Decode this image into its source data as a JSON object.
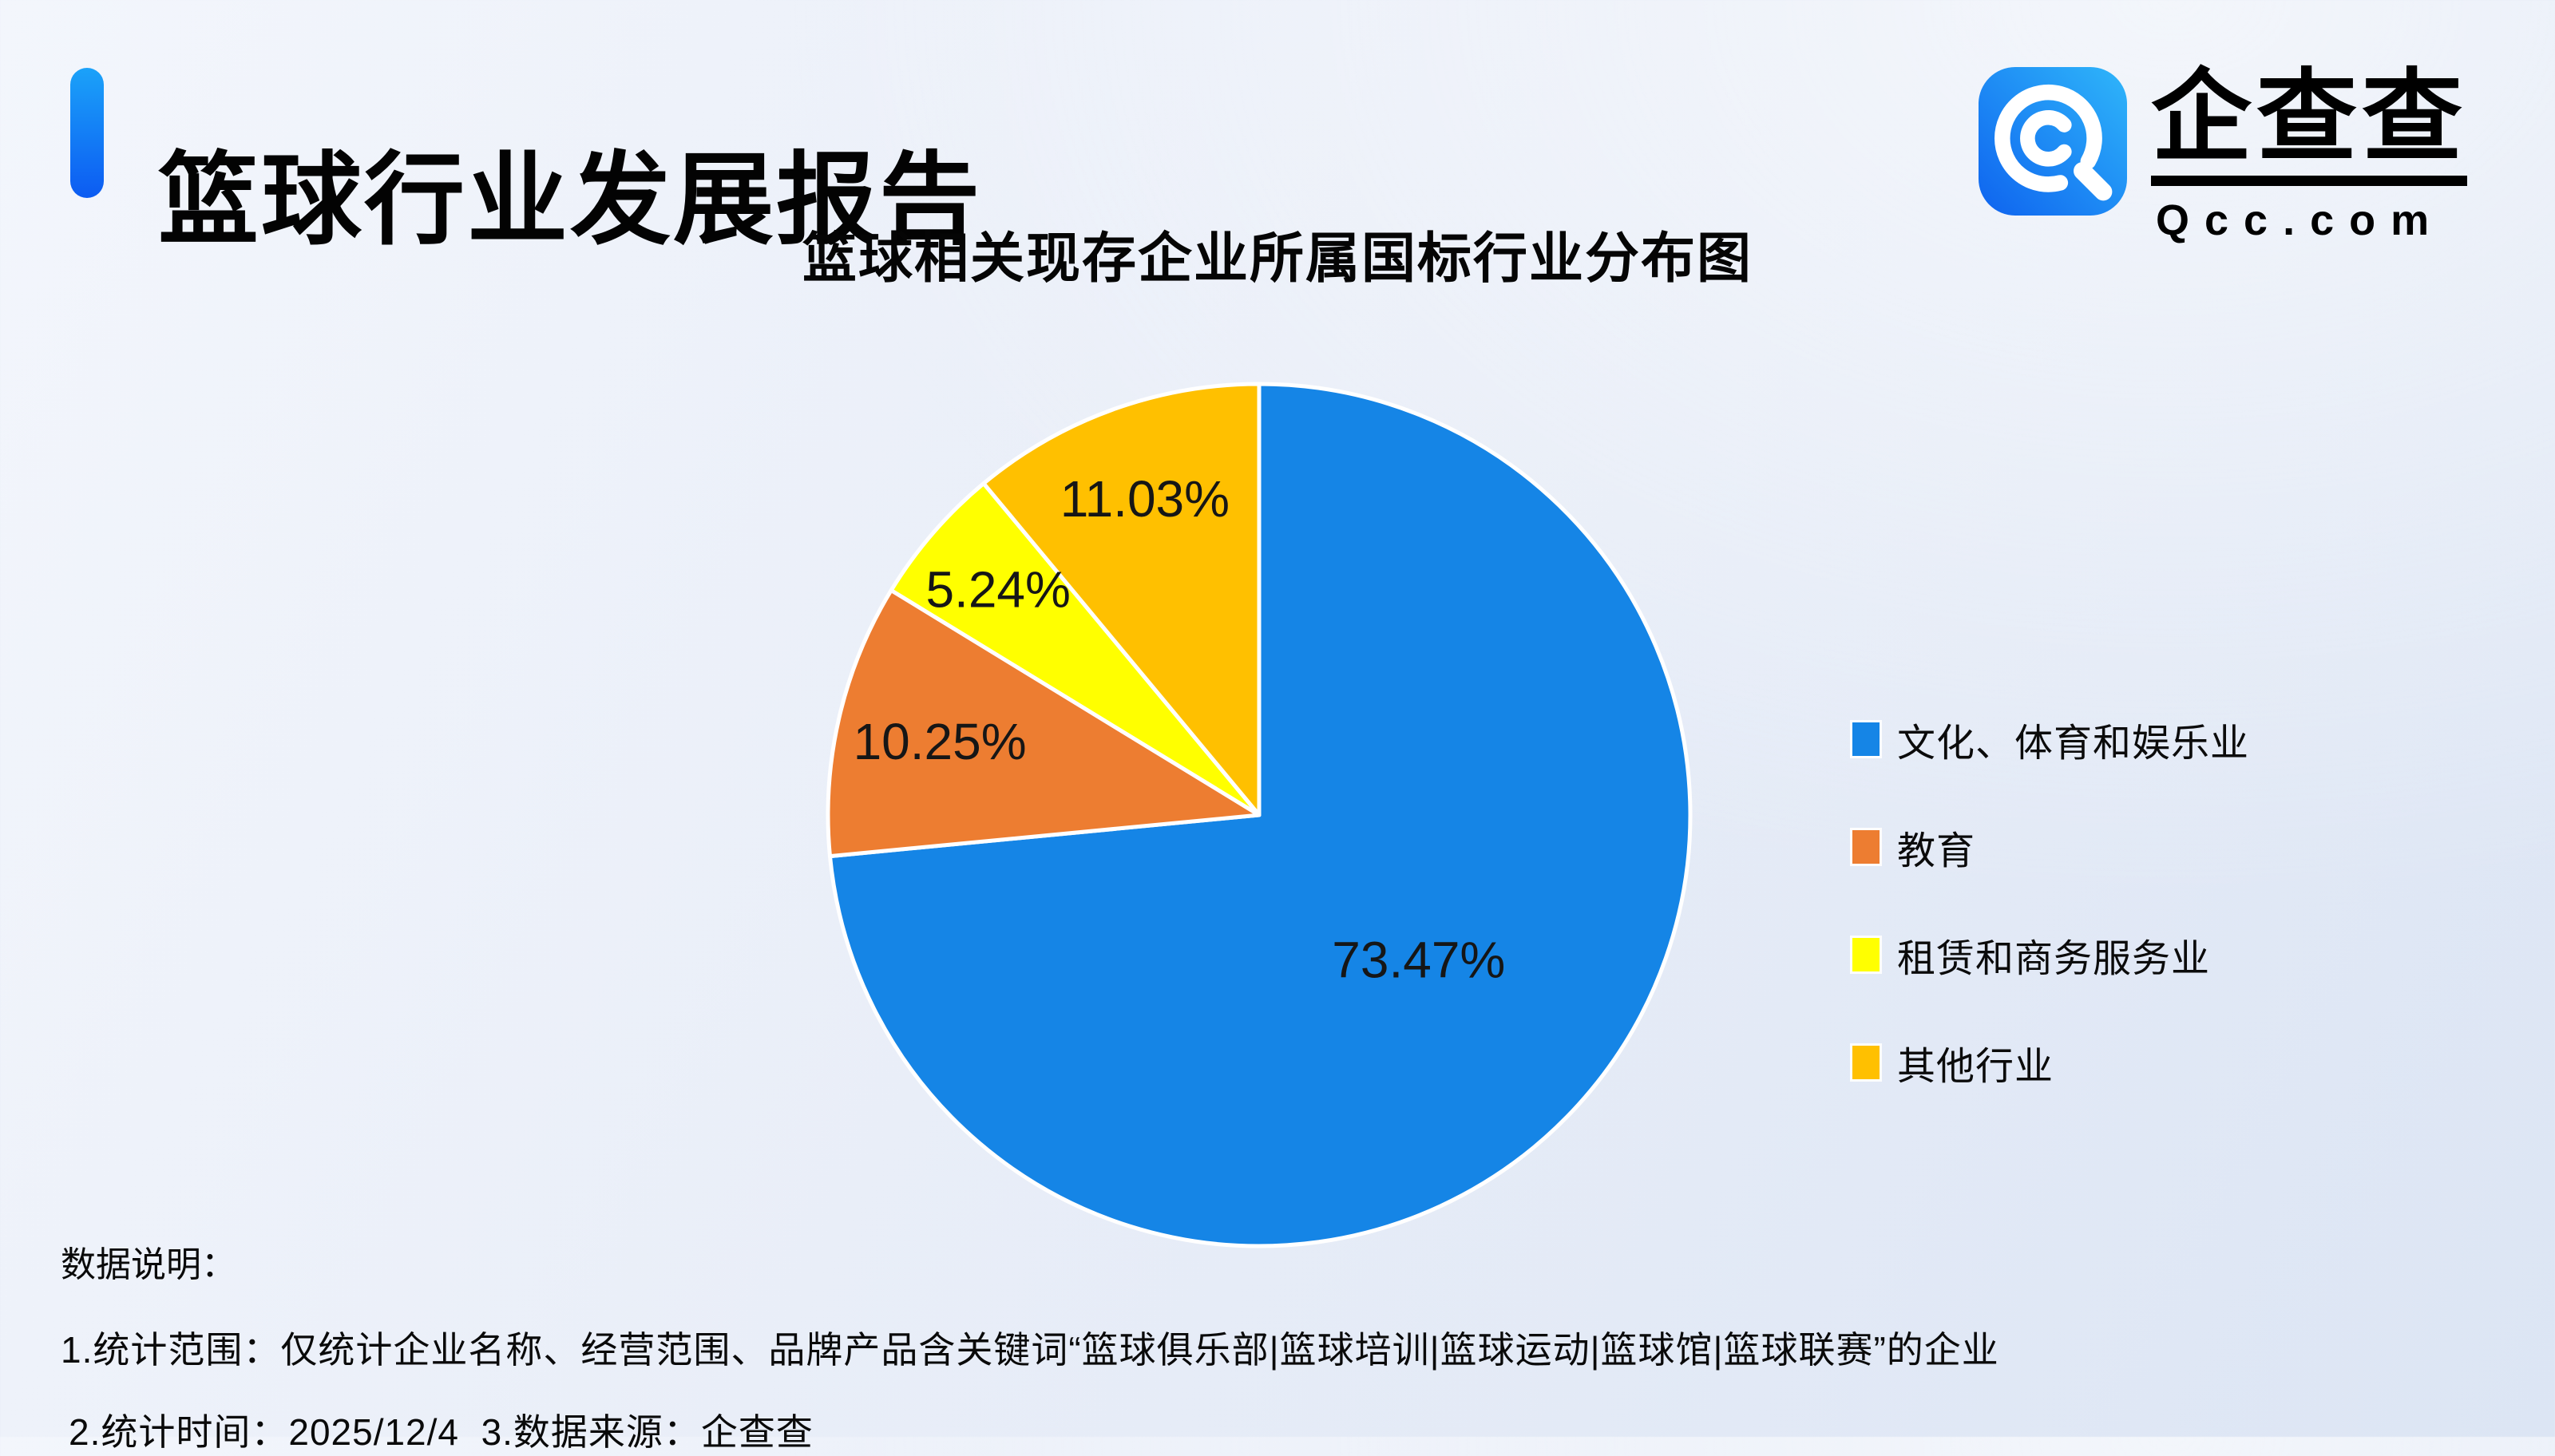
{
  "page": {
    "title": "篮球行业发展报告"
  },
  "logo": {
    "name": "企查查",
    "domain": "Qcc.com"
  },
  "theme": {
    "accent_top": "#1BA2F9",
    "accent_bottom": "#0C5BF2",
    "logo_gradient_start": "#2FB6FA",
    "logo_gradient_end": "#0E63EF",
    "background_start": "#F3F6FC",
    "background_end": "#DCE5F4",
    "slice_border": "#FFFFFF",
    "text": "#000000"
  },
  "chart_data": {
    "type": "pie",
    "title": "篮球相关现存企业所属国标行业分布图",
    "start_angle_deg": 0,
    "direction": "clockwise",
    "legend_position": "right",
    "labels_inside": true,
    "slices": [
      {
        "label": "文化、体育和娱乐业",
        "value": 73.47,
        "display": "73.47%",
        "color": "#1585E6",
        "label_r": 0.5
      },
      {
        "label": "教育",
        "value": 10.25,
        "display": "10.25%",
        "color": "#ED7D31",
        "label_r": 0.76
      },
      {
        "label": "租赁和商务服务业",
        "value": 5.24,
        "display": "5.24%",
        "color": "#FFFF00",
        "label_r": 0.8
      },
      {
        "label": "其他行业",
        "value": 11.03,
        "display": "11.03%",
        "color": "#FFC000",
        "label_r": 0.78
      }
    ]
  },
  "notes": {
    "heading": "数据说明：",
    "line1": "1.统计范围：仅统计企业名称、经营范围、品牌产品含关键词“篮球俱乐部|篮球培训|篮球运动|篮球馆|篮球联赛”的企业",
    "line2": "2.统计时间：2025/12/4  3.数据来源：企查查"
  }
}
